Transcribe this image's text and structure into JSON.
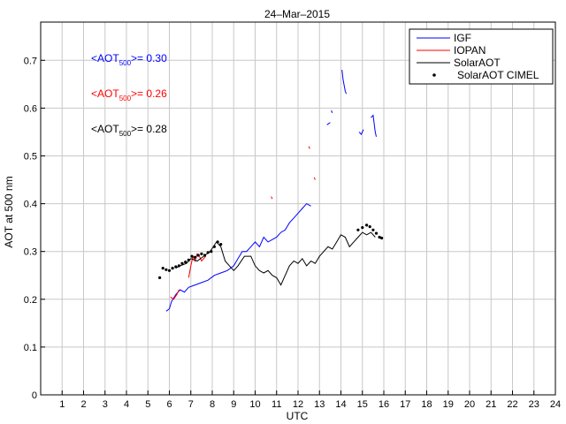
{
  "chart_data": {
    "type": "line",
    "title": "24–Mar–2015",
    "xlabel": "UTC",
    "ylabel": "AOT at 500 nm",
    "xlim": [
      0,
      24
    ],
    "ylim": [
      0,
      0.78
    ],
    "grid": true,
    "x_ticks": [
      "1",
      "2",
      "3",
      "4",
      "5",
      "6",
      "7",
      "8",
      "9",
      "10",
      "11",
      "12",
      "13",
      "14",
      "15",
      "16",
      "17",
      "18",
      "19",
      "20",
      "21",
      "22",
      "23",
      "24"
    ],
    "y_ticks": [
      "0",
      "0.1",
      "0.2",
      "0.3",
      "0.4",
      "0.5",
      "0.6",
      "0.7"
    ],
    "legend_position": "top-right",
    "legend": [
      {
        "label": "IGF",
        "color": "#0000ff",
        "style": "line"
      },
      {
        "label": "IOPAN",
        "color": "#ff0000",
        "style": "line"
      },
      {
        "label": "SolarAOT",
        "color": "#000000",
        "style": "line"
      },
      {
        "label": "SolarAOT CIMEL",
        "color": "#000000",
        "style": "dots"
      }
    ],
    "annotations": [
      {
        "prefix": "<AOT",
        "sub": "500",
        "suffix": ">= 0.30",
        "color": "#0000ff"
      },
      {
        "prefix": "<AOT",
        "sub": "500",
        "suffix": ">= 0.26",
        "color": "#ff0000"
      },
      {
        "prefix": "<AOT",
        "sub": "500",
        "suffix": ">= 0.28",
        "color": "#000000"
      }
    ],
    "series": [
      {
        "name": "IGF",
        "color": "#0000ff",
        "segments": [
          [
            [
              5.85,
              0.175
            ],
            [
              6.0,
              0.18
            ],
            [
              6.1,
              0.195
            ],
            [
              6.3,
              0.21
            ],
            [
              6.5,
              0.22
            ],
            [
              6.7,
              0.215
            ],
            [
              6.9,
              0.225
            ],
            [
              7.2,
              0.23
            ],
            [
              7.5,
              0.235
            ],
            [
              7.8,
              0.24
            ],
            [
              8.1,
              0.25
            ],
            [
              8.4,
              0.255
            ],
            [
              8.7,
              0.26
            ],
            [
              9.0,
              0.27
            ],
            [
              9.2,
              0.285
            ],
            [
              9.4,
              0.3
            ],
            [
              9.6,
              0.3
            ],
            [
              9.8,
              0.31
            ],
            [
              10.0,
              0.32
            ],
            [
              10.2,
              0.31
            ],
            [
              10.4,
              0.33
            ],
            [
              10.6,
              0.32
            ],
            [
              10.8,
              0.325
            ],
            [
              11.0,
              0.33
            ],
            [
              11.2,
              0.34
            ],
            [
              11.4,
              0.345
            ],
            [
              11.6,
              0.36
            ],
            [
              11.8,
              0.37
            ],
            [
              12.0,
              0.38
            ],
            [
              12.2,
              0.39
            ],
            [
              12.4,
              0.4
            ],
            [
              12.6,
              0.395
            ]
          ],
          [
            [
              13.35,
              0.565
            ],
            [
              13.5,
              0.57
            ]
          ],
          [
            [
              13.55,
              0.595
            ],
            [
              13.6,
              0.59
            ]
          ],
          [
            [
              14.05,
              0.68
            ],
            [
              14.1,
              0.66
            ],
            [
              14.2,
              0.635
            ],
            [
              14.25,
              0.63
            ]
          ],
          [
            [
              14.85,
              0.55
            ],
            [
              14.95,
              0.545
            ],
            [
              15.05,
              0.555
            ]
          ],
          [
            [
              15.4,
              0.58
            ],
            [
              15.5,
              0.585
            ],
            [
              15.6,
              0.55
            ],
            [
              15.65,
              0.54
            ]
          ]
        ]
      },
      {
        "name": "IOPAN",
        "color": "#ff0000",
        "segments": [
          [
            [
              6.05,
              0.205
            ],
            [
              6.2,
              0.2
            ],
            [
              6.35,
              0.21
            ],
            [
              6.45,
              0.22
            ]
          ],
          [
            [
              6.9,
              0.245
            ],
            [
              7.0,
              0.27
            ],
            [
              7.1,
              0.29
            ],
            [
              7.2,
              0.28
            ],
            [
              7.3,
              0.295
            ],
            [
              7.4,
              0.29
            ],
            [
              7.5,
              0.28
            ],
            [
              7.6,
              0.285
            ],
            [
              7.7,
              0.29
            ]
          ],
          [
            [
              10.75,
              0.415
            ],
            [
              10.8,
              0.41
            ]
          ],
          [
            [
              12.5,
              0.52
            ],
            [
              12.55,
              0.515
            ]
          ],
          [
            [
              12.75,
              0.455
            ],
            [
              12.8,
              0.45
            ]
          ]
        ]
      },
      {
        "name": "SolarAOT",
        "color": "#000000",
        "segments": [
          [
            [
              6.3,
              0.265
            ],
            [
              6.5,
              0.27
            ],
            [
              6.8,
              0.275
            ],
            [
              7.0,
              0.285
            ],
            [
              7.3,
              0.28
            ],
            [
              7.6,
              0.29
            ],
            [
              7.9,
              0.3
            ],
            [
              8.2,
              0.32
            ],
            [
              8.4,
              0.31
            ],
            [
              8.6,
              0.28
            ],
            [
              8.8,
              0.27
            ],
            [
              9.0,
              0.26
            ],
            [
              9.2,
              0.27
            ],
            [
              9.5,
              0.29
            ],
            [
              9.8,
              0.29
            ],
            [
              10.0,
              0.27
            ],
            [
              10.2,
              0.26
            ],
            [
              10.4,
              0.255
            ],
            [
              10.6,
              0.26
            ],
            [
              10.8,
              0.25
            ],
            [
              11.0,
              0.245
            ],
            [
              11.2,
              0.23
            ],
            [
              11.4,
              0.25
            ],
            [
              11.6,
              0.27
            ],
            [
              11.8,
              0.28
            ],
            [
              12.0,
              0.275
            ],
            [
              12.2,
              0.285
            ],
            [
              12.4,
              0.27
            ],
            [
              12.6,
              0.28
            ],
            [
              12.8,
              0.275
            ],
            [
              13.0,
              0.29
            ],
            [
              13.2,
              0.3
            ],
            [
              13.4,
              0.31
            ],
            [
              13.6,
              0.305
            ],
            [
              13.8,
              0.32
            ],
            [
              14.0,
              0.335
            ],
            [
              14.2,
              0.33
            ],
            [
              14.4,
              0.31
            ],
            [
              14.6,
              0.32
            ],
            [
              14.8,
              0.33
            ],
            [
              15.0,
              0.34
            ],
            [
              15.2,
              0.335
            ],
            [
              15.4,
              0.34
            ],
            [
              15.6,
              0.33
            ]
          ]
        ]
      },
      {
        "name": "SolarAOT CIMEL",
        "color": "#000000",
        "style": "dots",
        "points": [
          [
            5.55,
            0.245
          ],
          [
            5.7,
            0.265
          ],
          [
            5.85,
            0.262
          ],
          [
            6.0,
            0.26
          ],
          [
            6.15,
            0.265
          ],
          [
            6.3,
            0.268
          ],
          [
            6.45,
            0.27
          ],
          [
            6.6,
            0.275
          ],
          [
            6.75,
            0.278
          ],
          [
            6.9,
            0.282
          ],
          [
            7.05,
            0.29
          ],
          [
            7.2,
            0.288
          ],
          [
            7.35,
            0.292
          ],
          [
            7.5,
            0.295
          ],
          [
            7.65,
            0.292
          ],
          [
            7.8,
            0.298
          ],
          [
            7.95,
            0.3
          ],
          [
            8.1,
            0.31
          ],
          [
            8.25,
            0.32
          ],
          [
            8.4,
            0.315
          ],
          [
            14.8,
            0.345
          ],
          [
            15.0,
            0.35
          ],
          [
            15.2,
            0.355
          ],
          [
            15.35,
            0.352
          ],
          [
            15.5,
            0.345
          ],
          [
            15.65,
            0.338
          ],
          [
            15.8,
            0.33
          ],
          [
            15.9,
            0.328
          ]
        ]
      }
    ]
  }
}
